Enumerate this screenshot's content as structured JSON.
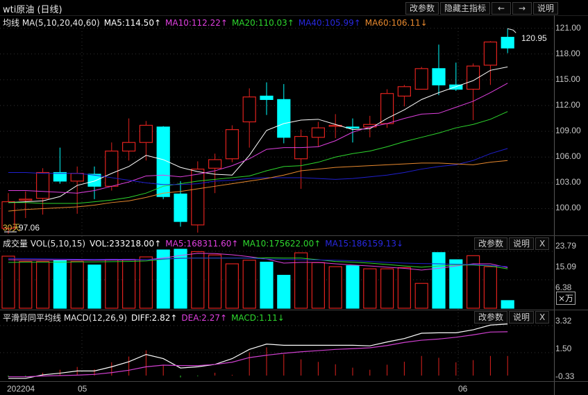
{
  "window": {
    "title": "wti原油 (日线)"
  },
  "toolbar": {
    "edit_params": "改参数",
    "hide_main": "隐藏主指标",
    "prev": "←",
    "next": "→",
    "help": "说明"
  },
  "main_legend": {
    "name": "均线 MA(5,10,20,40,60)",
    "ma5": "MA5:114.50↑",
    "ma10": "MA10:112.22↑",
    "ma20": "MA20:110.03↑",
    "ma40": "MA40:105.99↑",
    "ma60": "MA60:106.11↓"
  },
  "main_annotations": {
    "period": "30天",
    "low": "97.06",
    "high": "120.95"
  },
  "price_axis": [
    "121.00",
    "118.00",
    "115.00",
    "112.00",
    "109.00",
    "106.00",
    "103.00",
    "100.00"
  ],
  "volume_legend": {
    "name": "成交量 VOL(5,10,15)",
    "vol": "VOL:233218.00↑",
    "ma5": "MA5:168311.60↑",
    "ma10": "MA10:175622.00↑",
    "ma15": "MA15:186159.13↓",
    "edit_params": "改参数",
    "help": "说明",
    "close": "X"
  },
  "volume_axis": [
    "23.79",
    "15.09",
    "6.38"
  ],
  "volume_unit": "×万",
  "macd_legend": {
    "name": "平滑异同平均线 MACD(12,26,9)",
    "diff": "DIFF:2.82↑",
    "dea": "DEA:2.27↑",
    "macd": "MACD:1.11↓",
    "edit_params": "改参数",
    "help": "说明",
    "close": "X"
  },
  "macd_axis": [
    "3.32",
    "1.50",
    "-0.33"
  ],
  "x_axis": [
    "202204",
    "05",
    "06"
  ],
  "colors": {
    "up": "#e0221e",
    "down": "#00ffff",
    "ma5": "#ffffff",
    "ma10": "#e040e0",
    "ma20": "#2ed82e",
    "ma40": "#2020d0",
    "ma60": "#e8892e",
    "diff": "#ffffff",
    "dea": "#d040d0",
    "period_label": "#e8c040"
  },
  "chart_data": [
    {
      "type": "candlestick",
      "title": "wti原油 (日线)",
      "ylim": [
        97,
        121
      ],
      "grid": true,
      "ohlc": [
        [
          97.7,
          101.8,
          97.06,
          100.8
        ],
        [
          101.0,
          102.0,
          98.9,
          101.1
        ],
        [
          101.2,
          104.7,
          99.3,
          104.2
        ],
        [
          104.2,
          107.1,
          102.9,
          103.2
        ],
        [
          103.2,
          104.9,
          99.4,
          104.1
        ],
        [
          104.0,
          104.9,
          101.1,
          102.6
        ],
        [
          102.6,
          107.7,
          102.1,
          106.7
        ],
        [
          106.7,
          110.5,
          105.6,
          107.7
        ],
        [
          107.7,
          110.2,
          105.6,
          109.7
        ],
        [
          109.5,
          109.6,
          101.1,
          101.4
        ],
        [
          101.7,
          103.2,
          97.9,
          98.5
        ],
        [
          98.1,
          105.5,
          97.2,
          104.6
        ],
        [
          104.7,
          106.4,
          101.8,
          105.7
        ],
        [
          105.8,
          109.7,
          105.4,
          109.2
        ],
        [
          110.1,
          114.0,
          107.1,
          113.0
        ],
        [
          113.1,
          114.7,
          110.9,
          112.7
        ],
        [
          112.7,
          114.5,
          107.6,
          108.3
        ],
        [
          105.8,
          109.2,
          102.3,
          108.4
        ],
        [
          108.3,
          110.1,
          107.2,
          109.4
        ],
        [
          109.6,
          111.0,
          108.2,
          109.7
        ],
        [
          109.5,
          110.5,
          107.7,
          109.4
        ],
        [
          109.5,
          110.8,
          108.3,
          109.8
        ],
        [
          109.9,
          113.9,
          109.4,
          113.4
        ],
        [
          113.1,
          114.4,
          111.9,
          114.2
        ],
        [
          113.9,
          116.5,
          113.9,
          116.3
        ],
        [
          116.3,
          119.1,
          113.2,
          114.4
        ],
        [
          114.4,
          117.0,
          113.7,
          113.9
        ],
        [
          113.9,
          116.9,
          110.3,
          116.6
        ],
        [
          116.7,
          119.5,
          114.4,
          119.4
        ],
        [
          119.95,
          120.95,
          118.1,
          118.7
        ]
      ],
      "series": [
        {
          "name": "MA5",
          "values": [
            100.7,
            100.8,
            100.9,
            101.4,
            102.7,
            103.2,
            104.1,
            104.9,
            106.2,
            105.7,
            104.8,
            104.3,
            104.0,
            103.9,
            106.2,
            109.1,
            109.9,
            110.3,
            110.4,
            109.8,
            109.2,
            109.3,
            110.5,
            111.5,
            112.7,
            113.5,
            114.2,
            114.9,
            116.1,
            116.5
          ]
        },
        {
          "name": "MA10",
          "values": [
            102.1,
            102.1,
            102.0,
            101.9,
            101.8,
            102.1,
            102.6,
            103.1,
            103.8,
            103.9,
            103.7,
            104.0,
            104.4,
            105.0,
            105.8,
            106.9,
            107.1,
            107.1,
            107.2,
            107.9,
            108.9,
            109.5,
            109.9,
            110.5,
            111.0,
            111.1,
            111.8,
            112.5,
            113.5,
            114.6
          ]
        },
        {
          "name": "MA20",
          "values": [
            100.7,
            100.7,
            100.6,
            100.6,
            100.6,
            100.8,
            101.0,
            101.3,
            101.8,
            102.6,
            102.9,
            103.2,
            103.4,
            103.6,
            103.8,
            104.4,
            104.9,
            105.0,
            105.4,
            106.0,
            106.4,
            106.7,
            107.2,
            107.8,
            108.3,
            108.8,
            109.4,
            109.8,
            110.4,
            111.3
          ]
        },
        {
          "name": "MA40",
          "values": [
            104.2,
            104.2,
            104.1,
            104.1,
            104.1,
            103.9,
            103.6,
            103.3,
            103.0,
            102.8,
            102.8,
            102.9,
            103.2,
            103.3,
            103.5,
            103.6,
            103.6,
            103.6,
            103.5,
            103.4,
            103.5,
            103.7,
            103.9,
            104.2,
            104.6,
            104.9,
            105.1,
            105.6,
            106.4,
            107.0
          ]
        },
        {
          "name": "MA60",
          "values": [
            99.7,
            99.9,
            100.0,
            100.1,
            100.2,
            100.4,
            100.7,
            100.9,
            101.3,
            101.8,
            102.0,
            102.3,
            102.6,
            102.9,
            103.2,
            103.5,
            103.9,
            104.4,
            104.6,
            104.8,
            104.9,
            105.0,
            105.1,
            105.2,
            105.3,
            105.3,
            105.2,
            105.1,
            105.4,
            105.6
          ]
        }
      ]
    },
    {
      "type": "bar",
      "title": "成交量 VOL(5,10,15)",
      "ylabel": "×万",
      "ylim": [
        0,
        25
      ],
      "values": [
        21.8,
        19.6,
        19.6,
        19.9,
        19.6,
        18.1,
        20.5,
        20.5,
        21.5,
        24.4,
        24.7,
        23.7,
        22.3,
        18.6,
        20.1,
        19.3,
        13.8,
        23.2,
        19.1,
        17.4,
        17.8,
        16.5,
        16.5,
        17.0,
        10.4,
        23.3,
        20.3,
        22.0,
        17.4,
        3.2
      ],
      "series": [
        {
          "name": "MA5",
          "values": [
            20.3,
            20.2,
            20.2,
            20.2,
            20.2,
            20.1,
            20.2,
            20.2,
            20.3,
            21.0,
            22.1,
            23.0,
            22.9,
            22.4,
            21.6,
            20.6,
            18.9,
            19.2,
            19.2,
            18.6,
            18.1,
            17.7,
            17.2,
            16.7,
            16.0,
            16.7,
            17.7,
            18.6,
            18.6,
            17.0
          ]
        },
        {
          "name": "MA10",
          "values": [
            19.2,
            19.3,
            19.3,
            19.3,
            19.4,
            19.4,
            19.5,
            19.6,
            19.8,
            20.5,
            21.0,
            21.0,
            21.0,
            21.0,
            21.0,
            21.1,
            21.0,
            21.0,
            20.3,
            19.6,
            19.3,
            18.9,
            18.3,
            17.7,
            17.2,
            17.7,
            18.1,
            18.1,
            17.7,
            16.5
          ]
        },
        {
          "name": "MA15",
          "values": [
            20.9,
            20.8,
            20.7,
            20.6,
            20.5,
            20.5,
            20.5,
            20.5,
            20.3,
            20.6,
            20.9,
            21.0,
            21.0,
            21.0,
            21.0,
            20.6,
            20.5,
            20.3,
            20.2,
            20.1,
            19.9,
            19.6,
            19.2,
            18.9,
            18.7,
            18.6,
            18.4,
            18.3,
            17.9,
            17.4
          ]
        }
      ]
    },
    {
      "type": "line",
      "title": "平滑异同平均线 MACD(12,26,9)",
      "ylim": [
        -0.33,
        3.32
      ],
      "series": [
        {
          "name": "DIFF",
          "values": [
            -0.19,
            -0.19,
            0.05,
            0.16,
            0.31,
            0.31,
            0.59,
            0.93,
            1.42,
            1.14,
            0.51,
            0.59,
            0.75,
            1.14,
            1.76,
            2.12,
            2.04,
            2.04,
            2.04,
            2.04,
            2.04,
            2.0,
            2.26,
            2.49,
            2.85,
            2.88,
            2.88,
            3.08,
            3.4,
            3.47
          ]
        },
        {
          "name": "DEA",
          "values": [
            -0.08,
            -0.08,
            -0.03,
            0.0,
            0.03,
            0.08,
            0.2,
            0.36,
            0.59,
            0.7,
            0.67,
            0.67,
            0.75,
            0.9,
            1.21,
            1.37,
            1.5,
            1.6,
            1.68,
            1.76,
            1.81,
            1.87,
            2.02,
            2.23,
            2.38,
            2.46,
            2.58,
            2.74,
            2.93,
            2.95
          ]
        },
        {
          "name": "MACD",
          "values": [
            -0.1,
            -0.1,
            0.19,
            0.39,
            0.58,
            0.42,
            0.89,
            1.28,
            1.7,
            0.73,
            -0.12,
            -0.05,
            0.19,
            0.05,
            1.56,
            1.9,
            1.43,
            1.09,
            0.92,
            0.76,
            0.53,
            0.39,
            0.73,
            0.93,
            1.32,
            1.2,
            0.89,
            1.04,
            1.32,
            1.32
          ]
        }
      ]
    }
  ]
}
